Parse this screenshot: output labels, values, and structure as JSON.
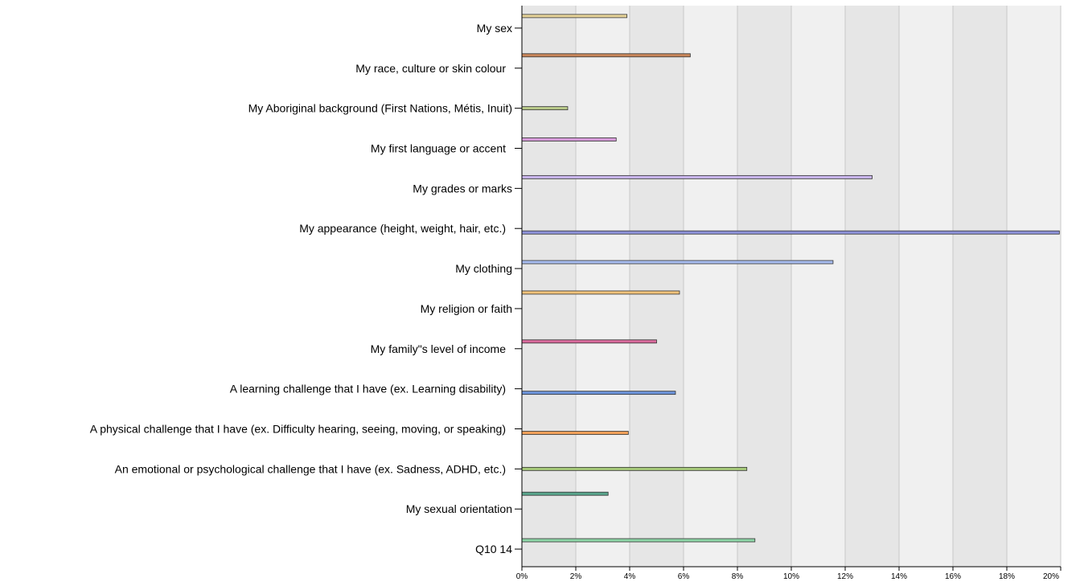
{
  "chart_data": {
    "type": "bar",
    "orientation": "horizontal",
    "categories": [
      "My sex",
      "My race, culture or skin colour",
      "My Aboriginal background (First Nations, Métis, Inuit)",
      "My first language or accent",
      "My grades or marks",
      "My appearance (height, weight, hair, etc.)",
      "My clothing",
      "My religion or faith",
      "My family\"s level of income",
      "A learning challenge that I have (ex. Learning disability)",
      "A physical challenge that I have (ex. Difficulty hearing, seeing, moving, or speaking)",
      "An emotional or psychological challenge that I have (ex. Sadness, ADHD, etc.)",
      "My sexual orientation",
      "Q10 14"
    ],
    "values": [
      3.9,
      6.25,
      1.7,
      3.5,
      13.0,
      19.95,
      11.55,
      5.85,
      5.0,
      5.7,
      3.95,
      8.35,
      3.2,
      8.65
    ],
    "bar_colors": [
      "#e8d59a",
      "#c8865a",
      "#b9c98a",
      "#d59ad8",
      "#c9b6ec",
      "#8d92d8",
      "#a8bdf0",
      "#f0c27a",
      "#d86a9c",
      "#6c93d8",
      "#f0a05a",
      "#a6c97a",
      "#5aa58c",
      "#8ed7a8"
    ],
    "xlim": [
      0,
      20
    ],
    "xticks": [
      0,
      2,
      4,
      6,
      8,
      10,
      12,
      14,
      16,
      18,
      20
    ],
    "xtick_labels": [
      "0%",
      "2%",
      "4%",
      "6%",
      "8%",
      "10%",
      "12%",
      "14%",
      "16%",
      "18%",
      "20%"
    ],
    "title": "",
    "xlabel": "",
    "ylabel": "",
    "grid": true,
    "legend": "none"
  }
}
